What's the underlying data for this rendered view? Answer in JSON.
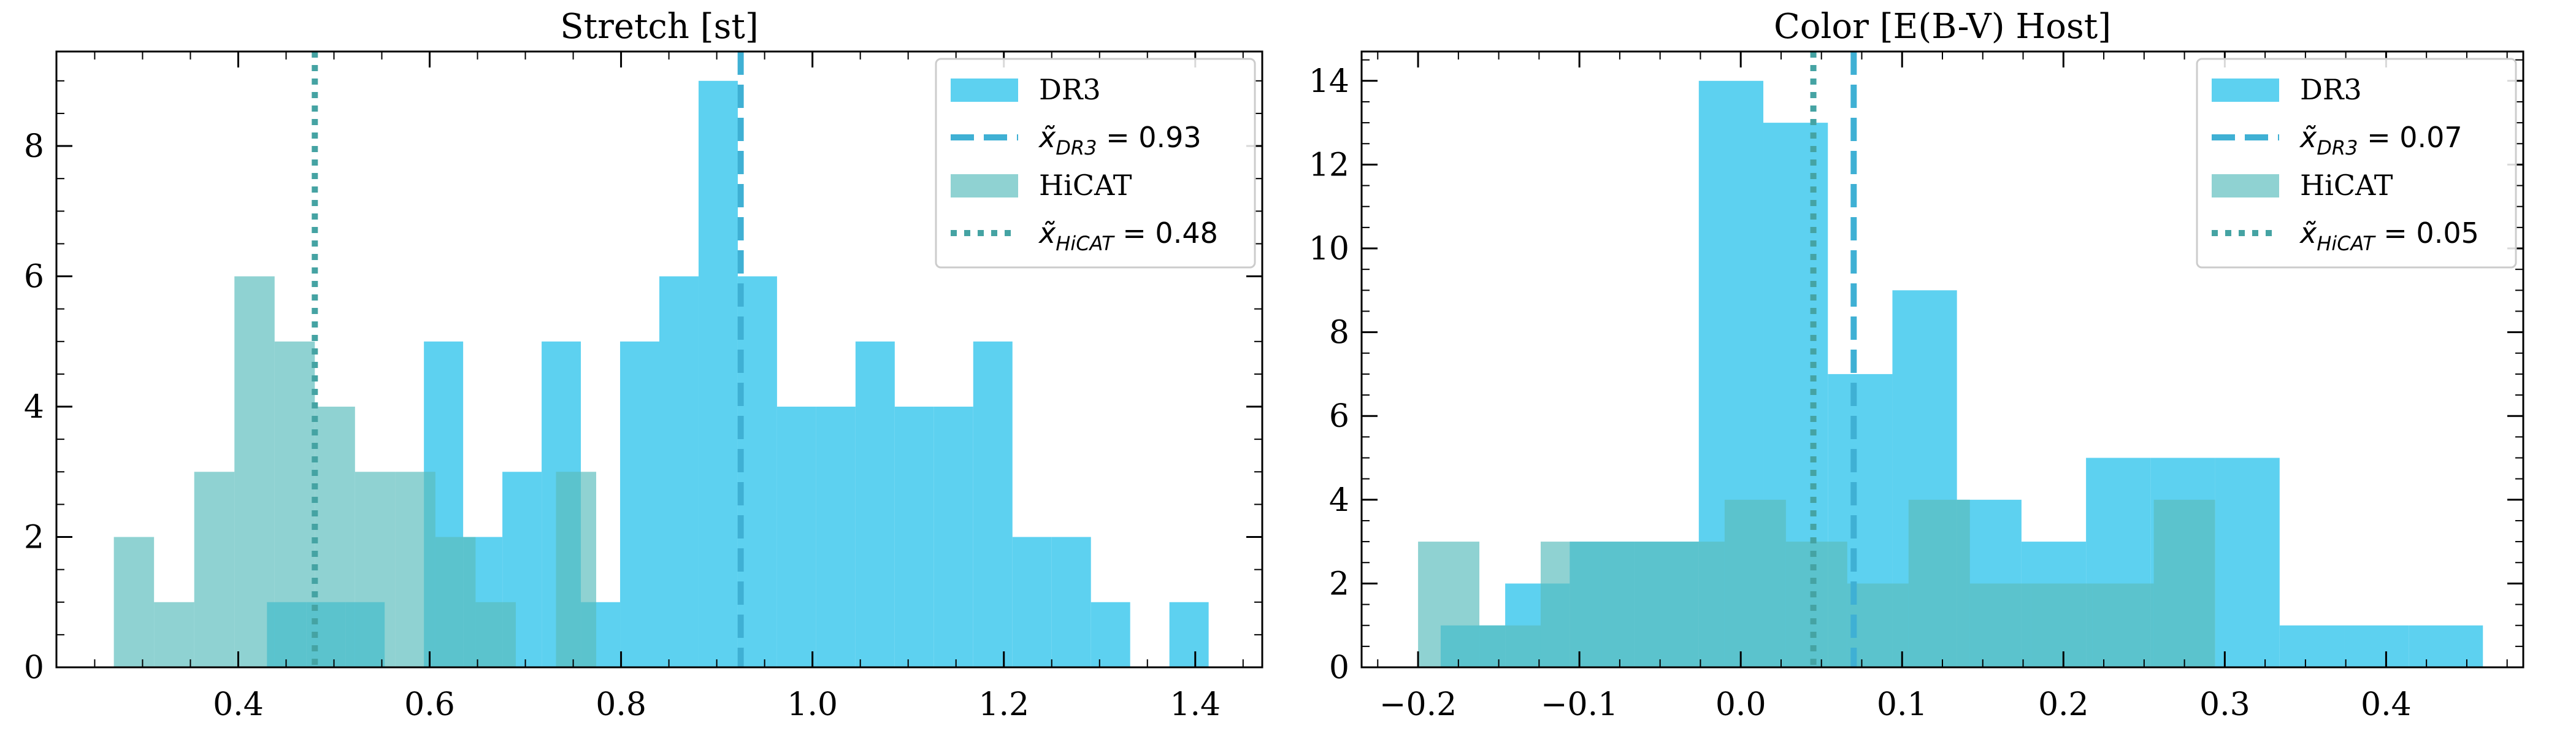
{
  "chart_data": [
    {
      "type": "bar",
      "title": "Stretch [st]",
      "xlim": [
        0.21,
        1.47
      ],
      "ylim": [
        0,
        9.45
      ],
      "xticks": [
        0.4,
        0.6,
        0.8,
        1.0,
        1.2,
        1.4
      ],
      "xtick_labels": [
        "0.4",
        "0.6",
        "0.8",
        "1.0",
        "1.2",
        "1.4"
      ],
      "yticks": [
        0,
        2,
        4,
        6,
        8
      ],
      "ytick_labels": [
        "0",
        "2",
        "4",
        "6",
        "8"
      ],
      "legend_position": "top-right",
      "series": [
        {
          "name": "DR3",
          "color": "#5ad0f0",
          "bin_edges": [
            0.43,
            0.471,
            0.512,
            0.553,
            0.594,
            0.635,
            0.676,
            0.717,
            0.758,
            0.799,
            0.84,
            0.881,
            0.922,
            0.963,
            1.004,
            1.045,
            1.086,
            1.127,
            1.168,
            1.209,
            1.25,
            1.291,
            1.332,
            1.373,
            1.414
          ],
          "counts": [
            1,
            1,
            1,
            0,
            5,
            2,
            3,
            5,
            1,
            5,
            6,
            9,
            6,
            4,
            4,
            5,
            4,
            4,
            5,
            2,
            2,
            1,
            0,
            1
          ]
        },
        {
          "name": "HiCAT",
          "color": "#5abcbc",
          "bin_edges": [
            0.27,
            0.312,
            0.354,
            0.396,
            0.438,
            0.48,
            0.522,
            0.564,
            0.606,
            0.648,
            0.69,
            0.732,
            0.774
          ],
          "counts": [
            2,
            1,
            3,
            6,
            5,
            4,
            3,
            3,
            2,
            1,
            0,
            3
          ]
        }
      ],
      "medians": [
        {
          "name": "DR3",
          "label_prefix": "x̃",
          "label_subscript": "DR3",
          "label_value": " = 0.93",
          "value": 0.925,
          "style": "dashed",
          "color": "#3fb0d4"
        },
        {
          "name": "HiCAT",
          "label_prefix": "x̃",
          "label_subscript": "HiCAT",
          "label_value": " = 0.48",
          "value": 0.48,
          "style": "dotted",
          "color": "#45a3a3"
        }
      ]
    },
    {
      "type": "bar",
      "title": "Color [E(B-V) Host]",
      "xlim": [
        -0.235,
        0.485
      ],
      "ylim": [
        0,
        14.7
      ],
      "xticks": [
        -0.2,
        -0.1,
        0.0,
        0.1,
        0.2,
        0.3,
        0.4
      ],
      "xtick_labels": [
        "−0.2",
        "−0.1",
        "0.0",
        "0.1",
        "0.2",
        "0.3",
        "0.4"
      ],
      "yticks": [
        0,
        2,
        4,
        6,
        8,
        10,
        12,
        14
      ],
      "ytick_labels": [
        "0",
        "2",
        "4",
        "6",
        "8",
        "10",
        "12",
        "14"
      ],
      "legend_position": "top-right",
      "series": [
        {
          "name": "DR3",
          "color": "#5ad0f0",
          "bin_edges": [
            -0.186,
            -0.146,
            -0.106,
            -0.066,
            -0.026,
            0.014,
            0.054,
            0.094,
            0.134,
            0.174,
            0.214,
            0.254,
            0.294,
            0.334,
            0.374,
            0.414,
            0.46
          ],
          "counts": [
            1,
            2,
            3,
            3,
            14,
            13,
            7,
            9,
            4,
            3,
            5,
            5,
            5,
            1,
            1,
            1
          ]
        },
        {
          "name": "HiCAT",
          "color": "#5abcbc",
          "bin_edges": [
            -0.2,
            -0.162,
            -0.124,
            -0.086,
            -0.048,
            -0.01,
            0.028,
            0.066,
            0.104,
            0.142,
            0.18,
            0.218,
            0.256,
            0.294
          ],
          "counts": [
            3,
            1,
            3,
            3,
            3,
            4,
            3,
            2,
            4,
            2,
            2,
            2,
            4
          ]
        }
      ],
      "medians": [
        {
          "name": "DR3",
          "label_prefix": "x̃",
          "label_subscript": "DR3",
          "label_value": " = 0.07",
          "value": 0.07,
          "style": "dashed",
          "color": "#3fb0d4"
        },
        {
          "name": "HiCAT",
          "label_prefix": "x̃",
          "label_subscript": "HiCAT",
          "label_value": " = 0.05",
          "value": 0.045,
          "style": "dotted",
          "color": "#45a3a3"
        }
      ]
    }
  ]
}
